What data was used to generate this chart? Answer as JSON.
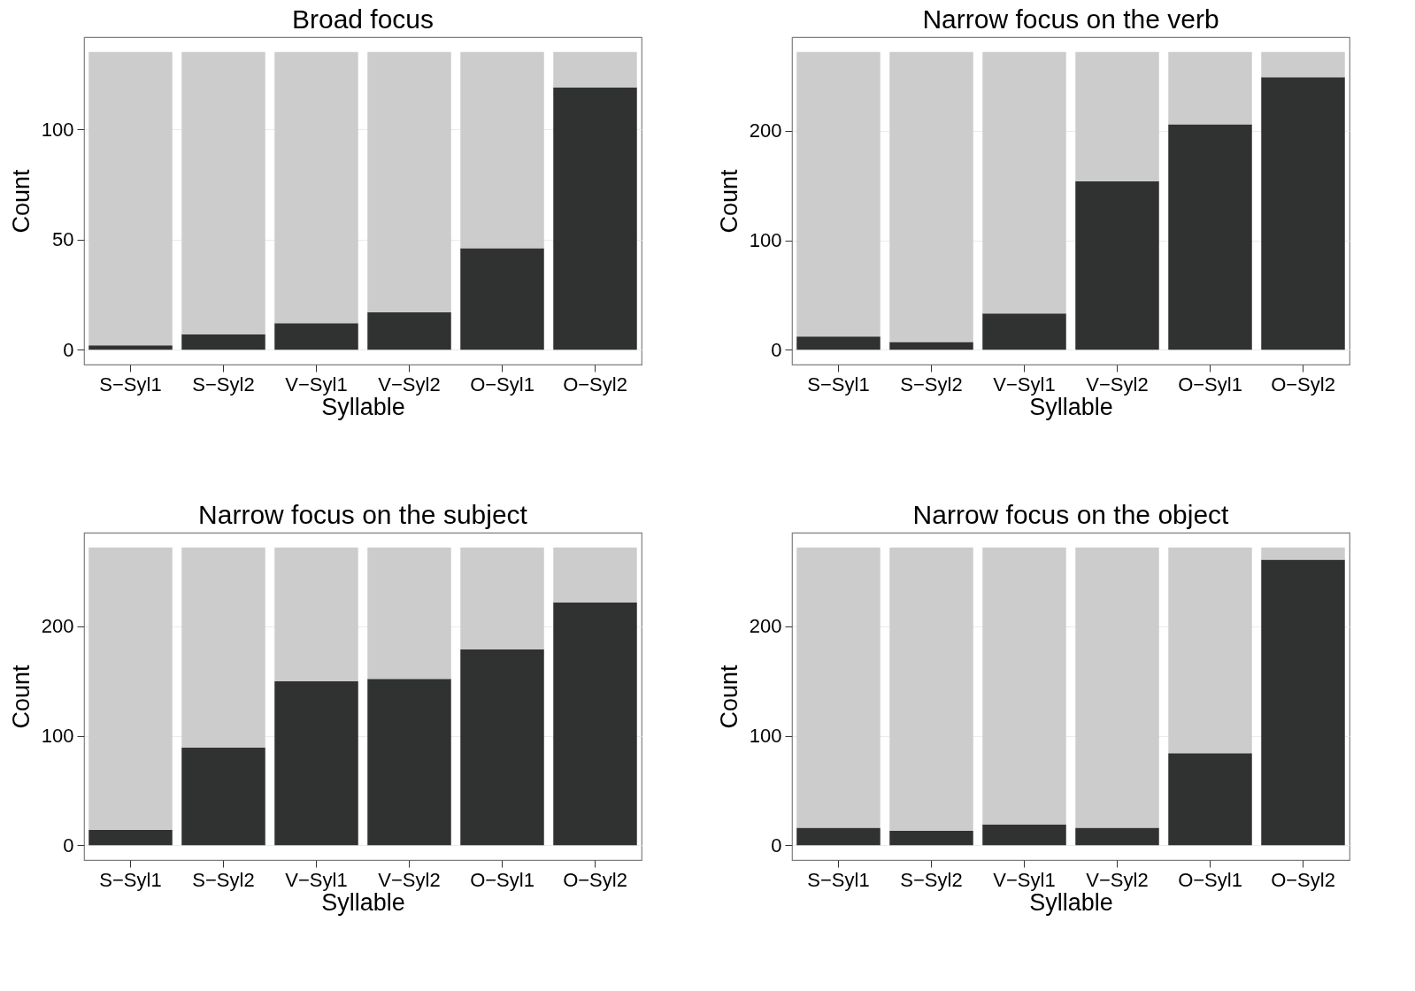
{
  "chart_data": [
    {
      "type": "bar",
      "title": "Broad focus",
      "xlabel": "Syllable",
      "ylabel": "Count",
      "stacked": true,
      "grid": "y",
      "legend": false,
      "categories": [
        "S−Syl1",
        "S−Syl2",
        "V−Syl1",
        "V−Syl2",
        "O−Syl1",
        "O−Syl2"
      ],
      "ylim": [
        -6.75,
        141.75
      ],
      "yticks": [
        0,
        50,
        100
      ],
      "series": [
        {
          "color": "#303131",
          "values": [
            2,
            7,
            12,
            17,
            46,
            119
          ]
        },
        {
          "color": "#cccccc",
          "values": [
            133,
            128,
            123,
            118,
            89,
            16
          ]
        }
      ]
    },
    {
      "type": "bar",
      "title": "Narrow focus on the verb",
      "xlabel": "Syllable",
      "ylabel": "Count",
      "stacked": true,
      "grid": "y",
      "legend": false,
      "categories": [
        "S−Syl1",
        "S−Syl2",
        "V−Syl1",
        "V−Syl2",
        "O−Syl1",
        "O−Syl2"
      ],
      "ylim": [
        -13.6,
        285.6
      ],
      "yticks": [
        0,
        100,
        200
      ],
      "series": [
        {
          "color": "#303131",
          "values": [
            12,
            7,
            33,
            154,
            206,
            249
          ]
        },
        {
          "color": "#cccccc",
          "values": [
            260,
            265,
            239,
            118,
            66,
            23
          ]
        }
      ]
    },
    {
      "type": "bar",
      "title": "Narrow focus on the subject",
      "xlabel": "Syllable",
      "ylabel": "Count",
      "stacked": true,
      "grid": "y",
      "legend": false,
      "categories": [
        "S−Syl1",
        "S−Syl2",
        "V−Syl1",
        "V−Syl2",
        "O−Syl1",
        "O−Syl2"
      ],
      "ylim": [
        -13.6,
        285.6
      ],
      "yticks": [
        0,
        100,
        200
      ],
      "series": [
        {
          "color": "#303131",
          "values": [
            14,
            89,
            150,
            152,
            179,
            222
          ]
        },
        {
          "color": "#cccccc",
          "values": [
            258,
            183,
            122,
            120,
            93,
            50
          ]
        }
      ]
    },
    {
      "type": "bar",
      "title": "Narrow focus on the object",
      "xlabel": "Syllable",
      "ylabel": "Count",
      "stacked": true,
      "grid": "y",
      "legend": false,
      "categories": [
        "S−Syl1",
        "S−Syl2",
        "V−Syl1",
        "V−Syl2",
        "O−Syl1",
        "O−Syl2"
      ],
      "ylim": [
        -13.6,
        285.6
      ],
      "yticks": [
        0,
        100,
        200
      ],
      "series": [
        {
          "color": "#303131",
          "values": [
            16,
            13,
            19,
            16,
            84,
            261
          ]
        },
        {
          "color": "#cccccc",
          "values": [
            256,
            259,
            253,
            256,
            188,
            11
          ]
        }
      ]
    }
  ]
}
